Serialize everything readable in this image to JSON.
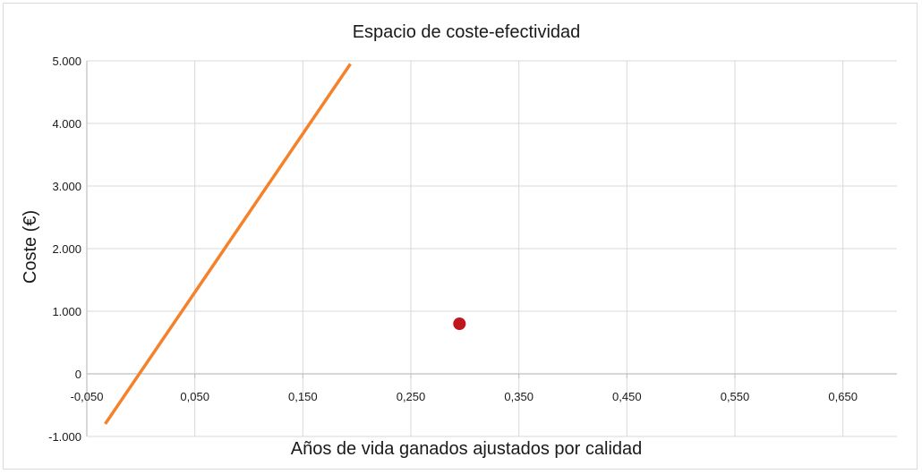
{
  "chart_data": {
    "type": "scatter",
    "title": "Espacio de coste-efectividad",
    "xlabel": "Años de vida ganados ajustados por calidad",
    "ylabel": "Coste (€)",
    "xlim": [
      -0.05,
      0.7
    ],
    "ylim": [
      -1000,
      5000
    ],
    "x_ticks": [
      -0.05,
      0.05,
      0.15,
      0.25,
      0.35,
      0.45,
      0.55,
      0.65
    ],
    "x_tick_labels": [
      "-0,050",
      "0,050",
      "0,150",
      "0,250",
      "0,350",
      "0,450",
      "0,550",
      "0,650"
    ],
    "y_ticks": [
      -1000,
      0,
      1000,
      2000,
      3000,
      4000,
      5000
    ],
    "y_tick_labels": [
      "-1.000",
      "0",
      "1.000",
      "2.000",
      "3.000",
      "4.000",
      "5.000"
    ],
    "grid": true,
    "legend": "none",
    "series": [
      {
        "type": "line",
        "color": "#f5812a",
        "points": [
          [
            -0.033,
            -800
          ],
          [
            0.194,
            4950
          ]
        ]
      },
      {
        "type": "scatter",
        "color": "#c0161e",
        "points": [
          [
            0.295,
            800
          ]
        ]
      }
    ]
  }
}
